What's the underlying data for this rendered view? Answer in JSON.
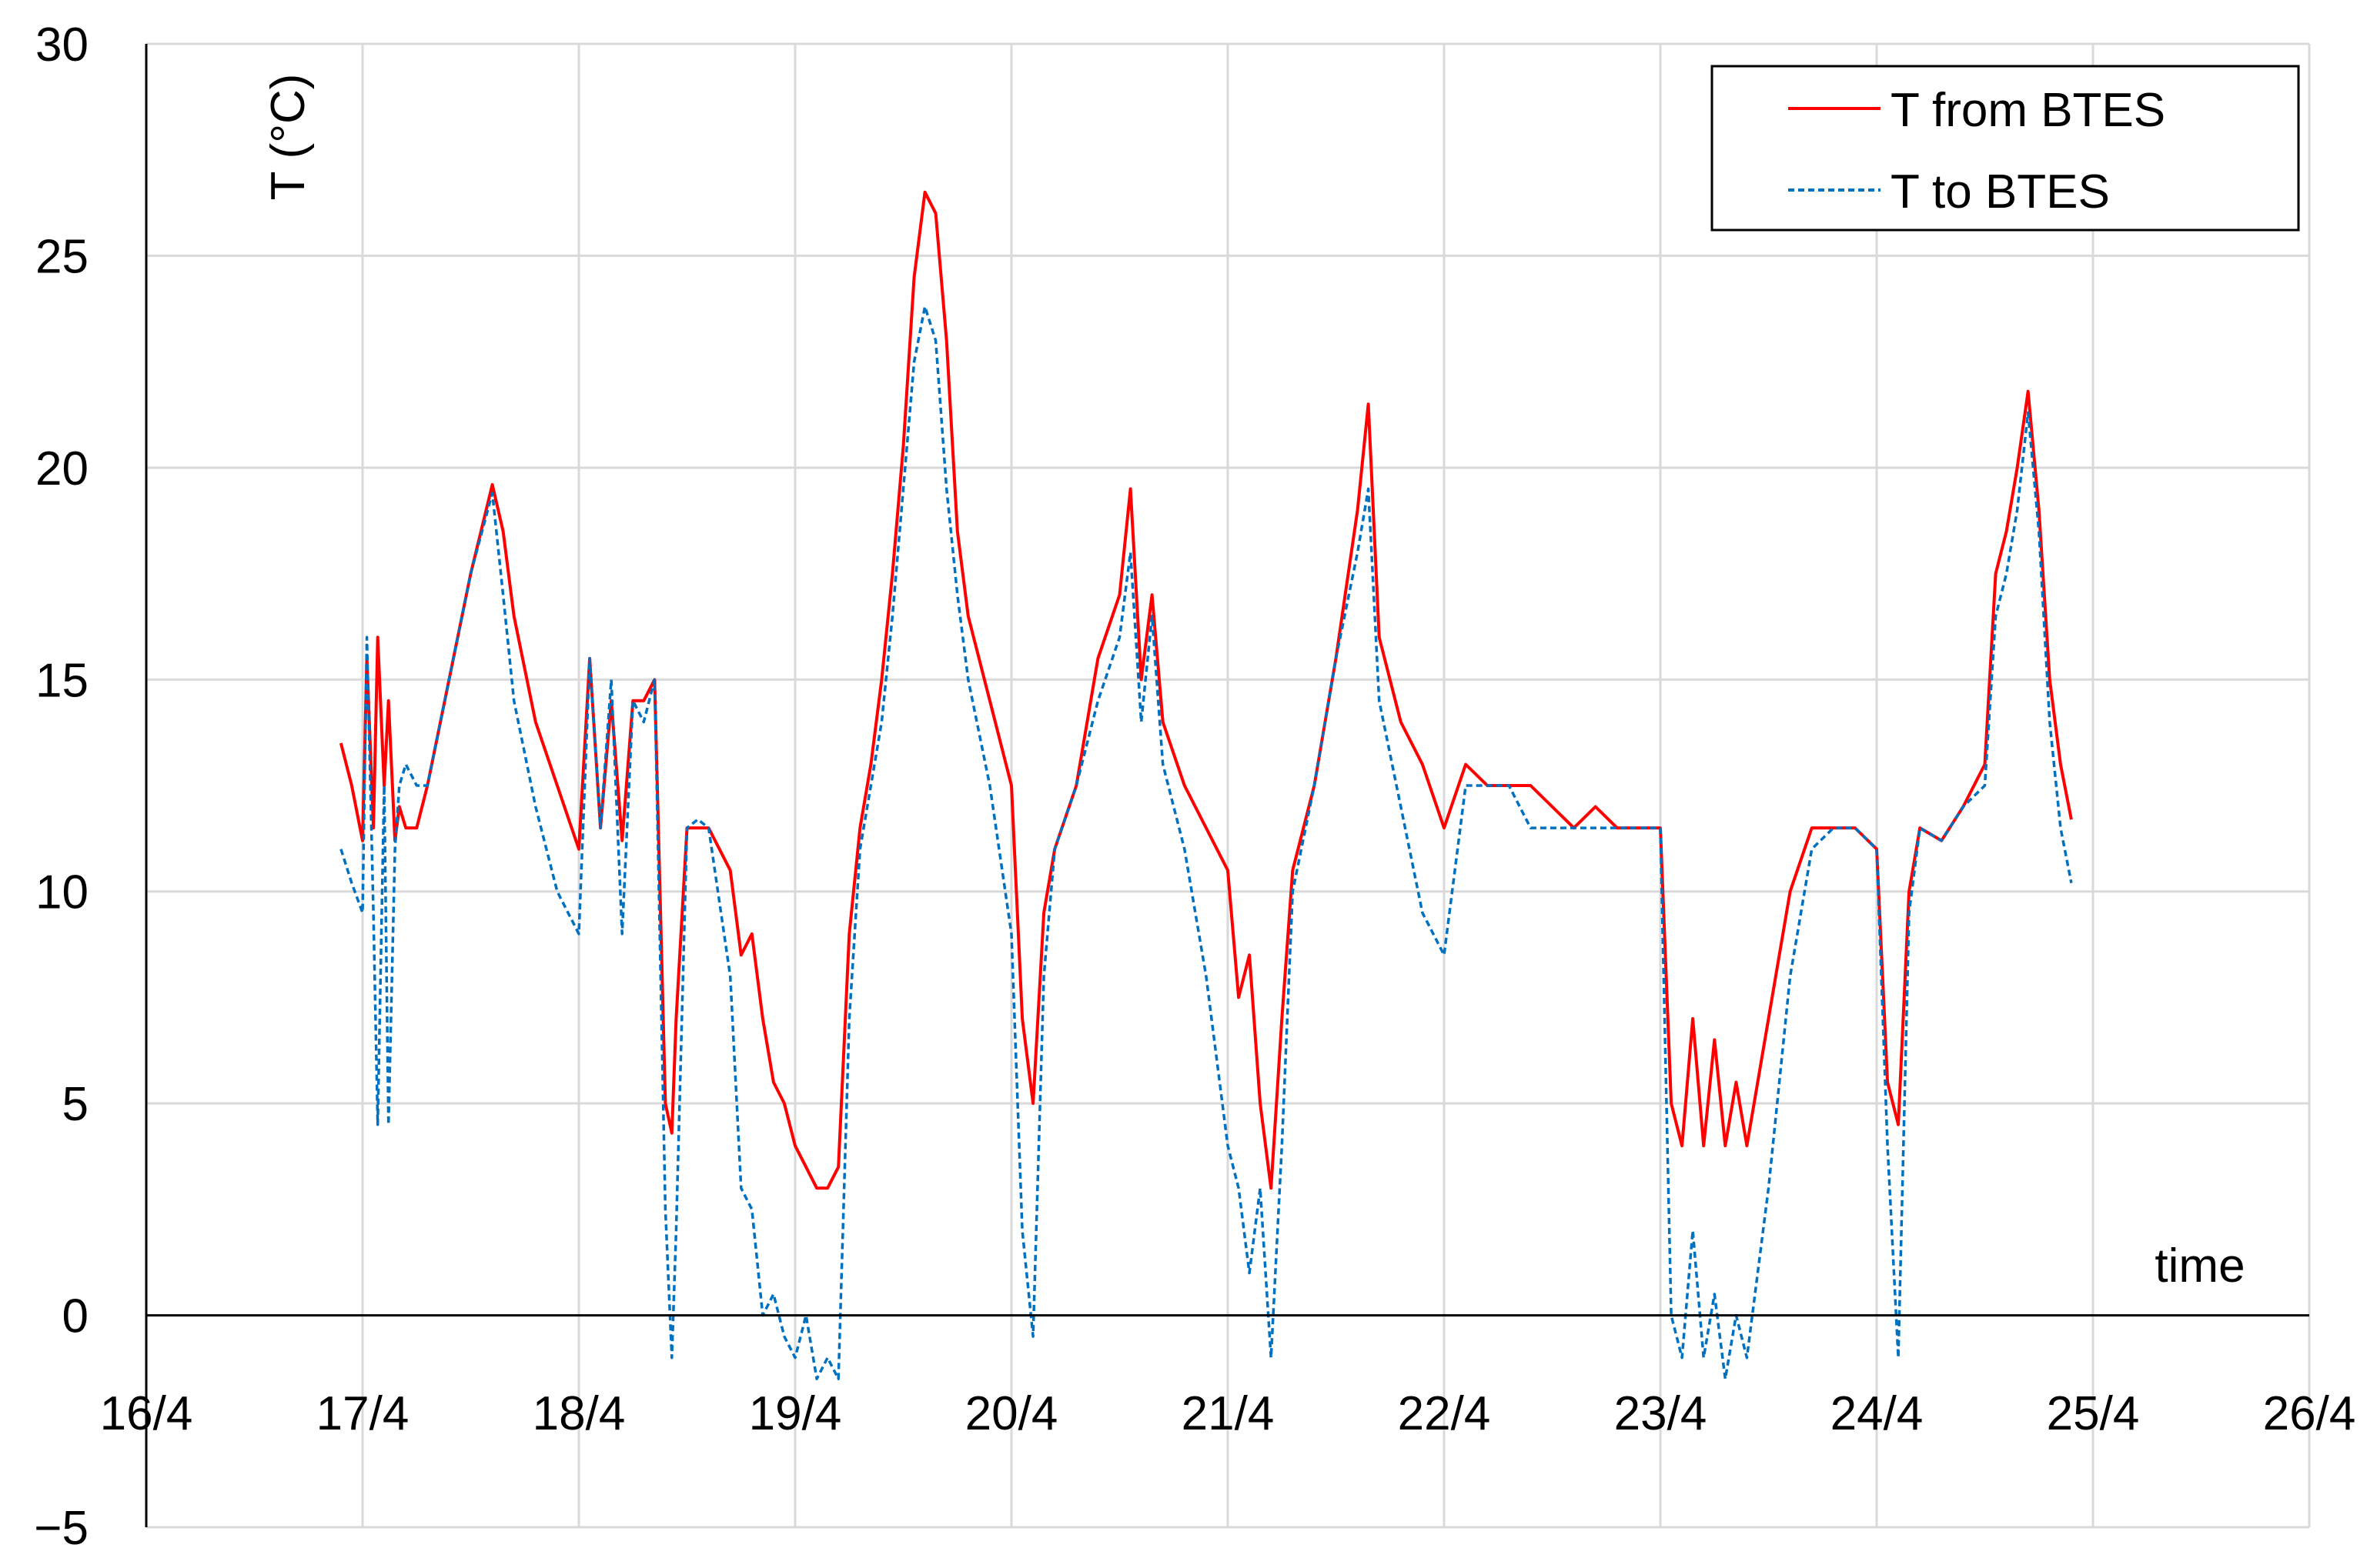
{
  "chart_data": {
    "type": "line",
    "title": "",
    "ylabel": "T (°C)",
    "xlabel": "time",
    "x_unit": "day (April)",
    "xlim": [
      16,
      26
    ],
    "ylim": [
      -5,
      30
    ],
    "x_ticks": [
      16,
      17,
      18,
      19,
      20,
      21,
      22,
      23,
      24,
      25,
      26
    ],
    "x_tick_labels": [
      "16/4",
      "17/4",
      "18/4",
      "19/4",
      "20/4",
      "21/4",
      "22/4",
      "23/4",
      "24/4",
      "25/4",
      "26/4"
    ],
    "y_ticks": [
      -5,
      0,
      5,
      10,
      15,
      20,
      25,
      30
    ],
    "y_tick_labels": [
      "−5",
      "0",
      "5",
      "10",
      "15",
      "20",
      "25",
      "30"
    ],
    "grid": true,
    "legend_position": "top-right",
    "series": [
      {
        "name": "T from BTES",
        "color": "#ff0000",
        "style": "solid",
        "x": [
          16.9,
          16.95,
          17.0,
          17.02,
          17.05,
          17.07,
          17.1,
          17.12,
          17.15,
          17.17,
          17.2,
          17.25,
          17.3,
          17.4,
          17.5,
          17.6,
          17.65,
          17.7,
          17.8,
          17.9,
          18.0,
          18.05,
          18.1,
          18.15,
          18.2,
          18.25,
          18.3,
          18.35,
          18.4,
          18.43,
          18.45,
          18.5,
          18.55,
          18.6,
          18.7,
          18.75,
          18.8,
          18.85,
          18.9,
          18.95,
          19.0,
          19.05,
          19.1,
          19.15,
          19.2,
          19.25,
          19.3,
          19.35,
          19.4,
          19.45,
          19.5,
          19.55,
          19.6,
          19.65,
          19.7,
          19.75,
          19.8,
          19.9,
          20.0,
          20.05,
          20.1,
          20.15,
          20.2,
          20.3,
          20.4,
          20.5,
          20.55,
          20.6,
          20.65,
          20.7,
          20.8,
          20.9,
          21.0,
          21.05,
          21.1,
          21.15,
          21.2,
          21.25,
          21.3,
          21.4,
          21.5,
          21.6,
          21.65,
          21.7,
          21.8,
          21.9,
          22.0,
          22.1,
          22.2,
          22.3,
          22.4,
          22.5,
          22.6,
          22.7,
          22.8,
          22.9,
          23.0,
          23.05,
          23.1,
          23.15,
          23.2,
          23.25,
          23.3,
          23.35,
          23.4,
          23.5,
          23.6,
          23.7,
          23.8,
          23.9,
          24.0,
          24.05,
          24.1,
          24.15,
          24.2,
          24.3,
          24.4,
          24.5,
          24.55,
          24.6,
          24.65,
          24.7,
          24.75,
          24.8,
          24.85,
          24.9
        ],
        "y": [
          13.5,
          12.5,
          11.2,
          15.5,
          11.5,
          16.0,
          12.5,
          14.5,
          11.2,
          12.0,
          11.5,
          11.5,
          12.5,
          15.0,
          17.5,
          19.6,
          18.5,
          16.5,
          14.0,
          12.5,
          11.0,
          15.5,
          11.5,
          14.5,
          11.2,
          14.5,
          14.5,
          15.0,
          5.0,
          4.3,
          7.0,
          11.5,
          11.5,
          11.5,
          10.5,
          8.5,
          9.0,
          7.0,
          5.5,
          5.0,
          4.0,
          3.5,
          3.0,
          3.0,
          3.5,
          9.0,
          11.5,
          13.0,
          15.0,
          17.5,
          20.5,
          24.5,
          26.5,
          26.0,
          23.0,
          18.5,
          16.5,
          14.5,
          12.5,
          7.0,
          5.0,
          9.5,
          11.0,
          12.5,
          15.5,
          17.0,
          19.5,
          15.0,
          17.0,
          14.0,
          12.5,
          11.5,
          10.5,
          7.5,
          8.5,
          5.0,
          3.0,
          7.0,
          10.5,
          12.5,
          15.5,
          19.0,
          21.5,
          16.0,
          14.0,
          13.0,
          11.5,
          13.0,
          12.5,
          12.5,
          12.5,
          12.0,
          11.5,
          12.0,
          11.5,
          11.5,
          11.5,
          5.0,
          4.0,
          7.0,
          4.0,
          6.5,
          4.0,
          5.5,
          4.0,
          7.0,
          10.0,
          11.5,
          11.5,
          11.5,
          11.0,
          5.5,
          4.5,
          10.0,
          11.5,
          11.2,
          12.0,
          13.0,
          17.5,
          18.5,
          20.0,
          21.8,
          19.0,
          15.0,
          13.0,
          11.7
        ]
      },
      {
        "name": "T to BTES",
        "color": "#0070c0",
        "style": "dashed",
        "x": [
          16.9,
          16.95,
          17.0,
          17.02,
          17.05,
          17.07,
          17.1,
          17.12,
          17.15,
          17.17,
          17.2,
          17.25,
          17.3,
          17.4,
          17.5,
          17.6,
          17.65,
          17.7,
          17.8,
          17.9,
          18.0,
          18.05,
          18.1,
          18.15,
          18.2,
          18.25,
          18.3,
          18.35,
          18.4,
          18.43,
          18.45,
          18.5,
          18.55,
          18.6,
          18.7,
          18.75,
          18.8,
          18.85,
          18.9,
          18.95,
          19.0,
          19.05,
          19.1,
          19.15,
          19.2,
          19.25,
          19.3,
          19.35,
          19.4,
          19.45,
          19.5,
          19.55,
          19.6,
          19.65,
          19.7,
          19.75,
          19.8,
          19.9,
          20.0,
          20.05,
          20.1,
          20.15,
          20.2,
          20.3,
          20.4,
          20.5,
          20.55,
          20.6,
          20.65,
          20.7,
          20.8,
          20.9,
          21.0,
          21.05,
          21.1,
          21.15,
          21.2,
          21.25,
          21.3,
          21.4,
          21.5,
          21.6,
          21.65,
          21.7,
          21.8,
          21.9,
          22.0,
          22.1,
          22.2,
          22.3,
          22.4,
          22.5,
          22.6,
          22.7,
          22.8,
          22.9,
          23.0,
          23.05,
          23.1,
          23.15,
          23.2,
          23.25,
          23.3,
          23.35,
          23.4,
          23.5,
          23.6,
          23.7,
          23.8,
          23.9,
          24.0,
          24.05,
          24.1,
          24.15,
          24.2,
          24.3,
          24.4,
          24.5,
          24.55,
          24.6,
          24.65,
          24.7,
          24.75,
          24.8,
          24.85,
          24.9
        ],
        "y": [
          11.0,
          10.2,
          9.5,
          16.0,
          9.5,
          4.5,
          12.5,
          4.5,
          11.0,
          12.5,
          13.0,
          12.5,
          12.5,
          15.0,
          17.5,
          19.4,
          17.0,
          14.5,
          12.0,
          10.0,
          9.0,
          15.5,
          11.5,
          15.0,
          9.0,
          14.5,
          14.0,
          15.0,
          2.5,
          -1.0,
          2.0,
          11.5,
          11.7,
          11.5,
          8.0,
          3.0,
          2.5,
          0.0,
          0.5,
          -0.5,
          -1.0,
          0.0,
          -1.5,
          -1.0,
          -1.5,
          7.0,
          11.0,
          12.5,
          14.0,
          16.5,
          19.5,
          22.5,
          23.8,
          23.0,
          19.5,
          17.0,
          15.0,
          12.5,
          9.0,
          2.0,
          -0.5,
          8.0,
          11.0,
          12.5,
          14.5,
          16.0,
          18.0,
          14.0,
          16.5,
          13.0,
          11.0,
          8.0,
          4.0,
          3.0,
          1.0,
          3.0,
          -1.0,
          4.0,
          10.0,
          12.5,
          15.5,
          18.0,
          19.5,
          14.5,
          12.0,
          9.5,
          8.5,
          12.5,
          12.5,
          12.5,
          11.5,
          11.5,
          11.5,
          11.5,
          11.5,
          11.5,
          11.5,
          0.0,
          -1.0,
          2.0,
          -1.0,
          0.5,
          -1.5,
          0.0,
          -1.0,
          3.0,
          8.0,
          11.0,
          11.5,
          11.5,
          11.0,
          4.0,
          -1.0,
          9.5,
          11.5,
          11.2,
          12.0,
          12.5,
          16.5,
          17.5,
          19.0,
          21.3,
          18.5,
          14.0,
          11.5,
          10.2
        ]
      }
    ]
  }
}
